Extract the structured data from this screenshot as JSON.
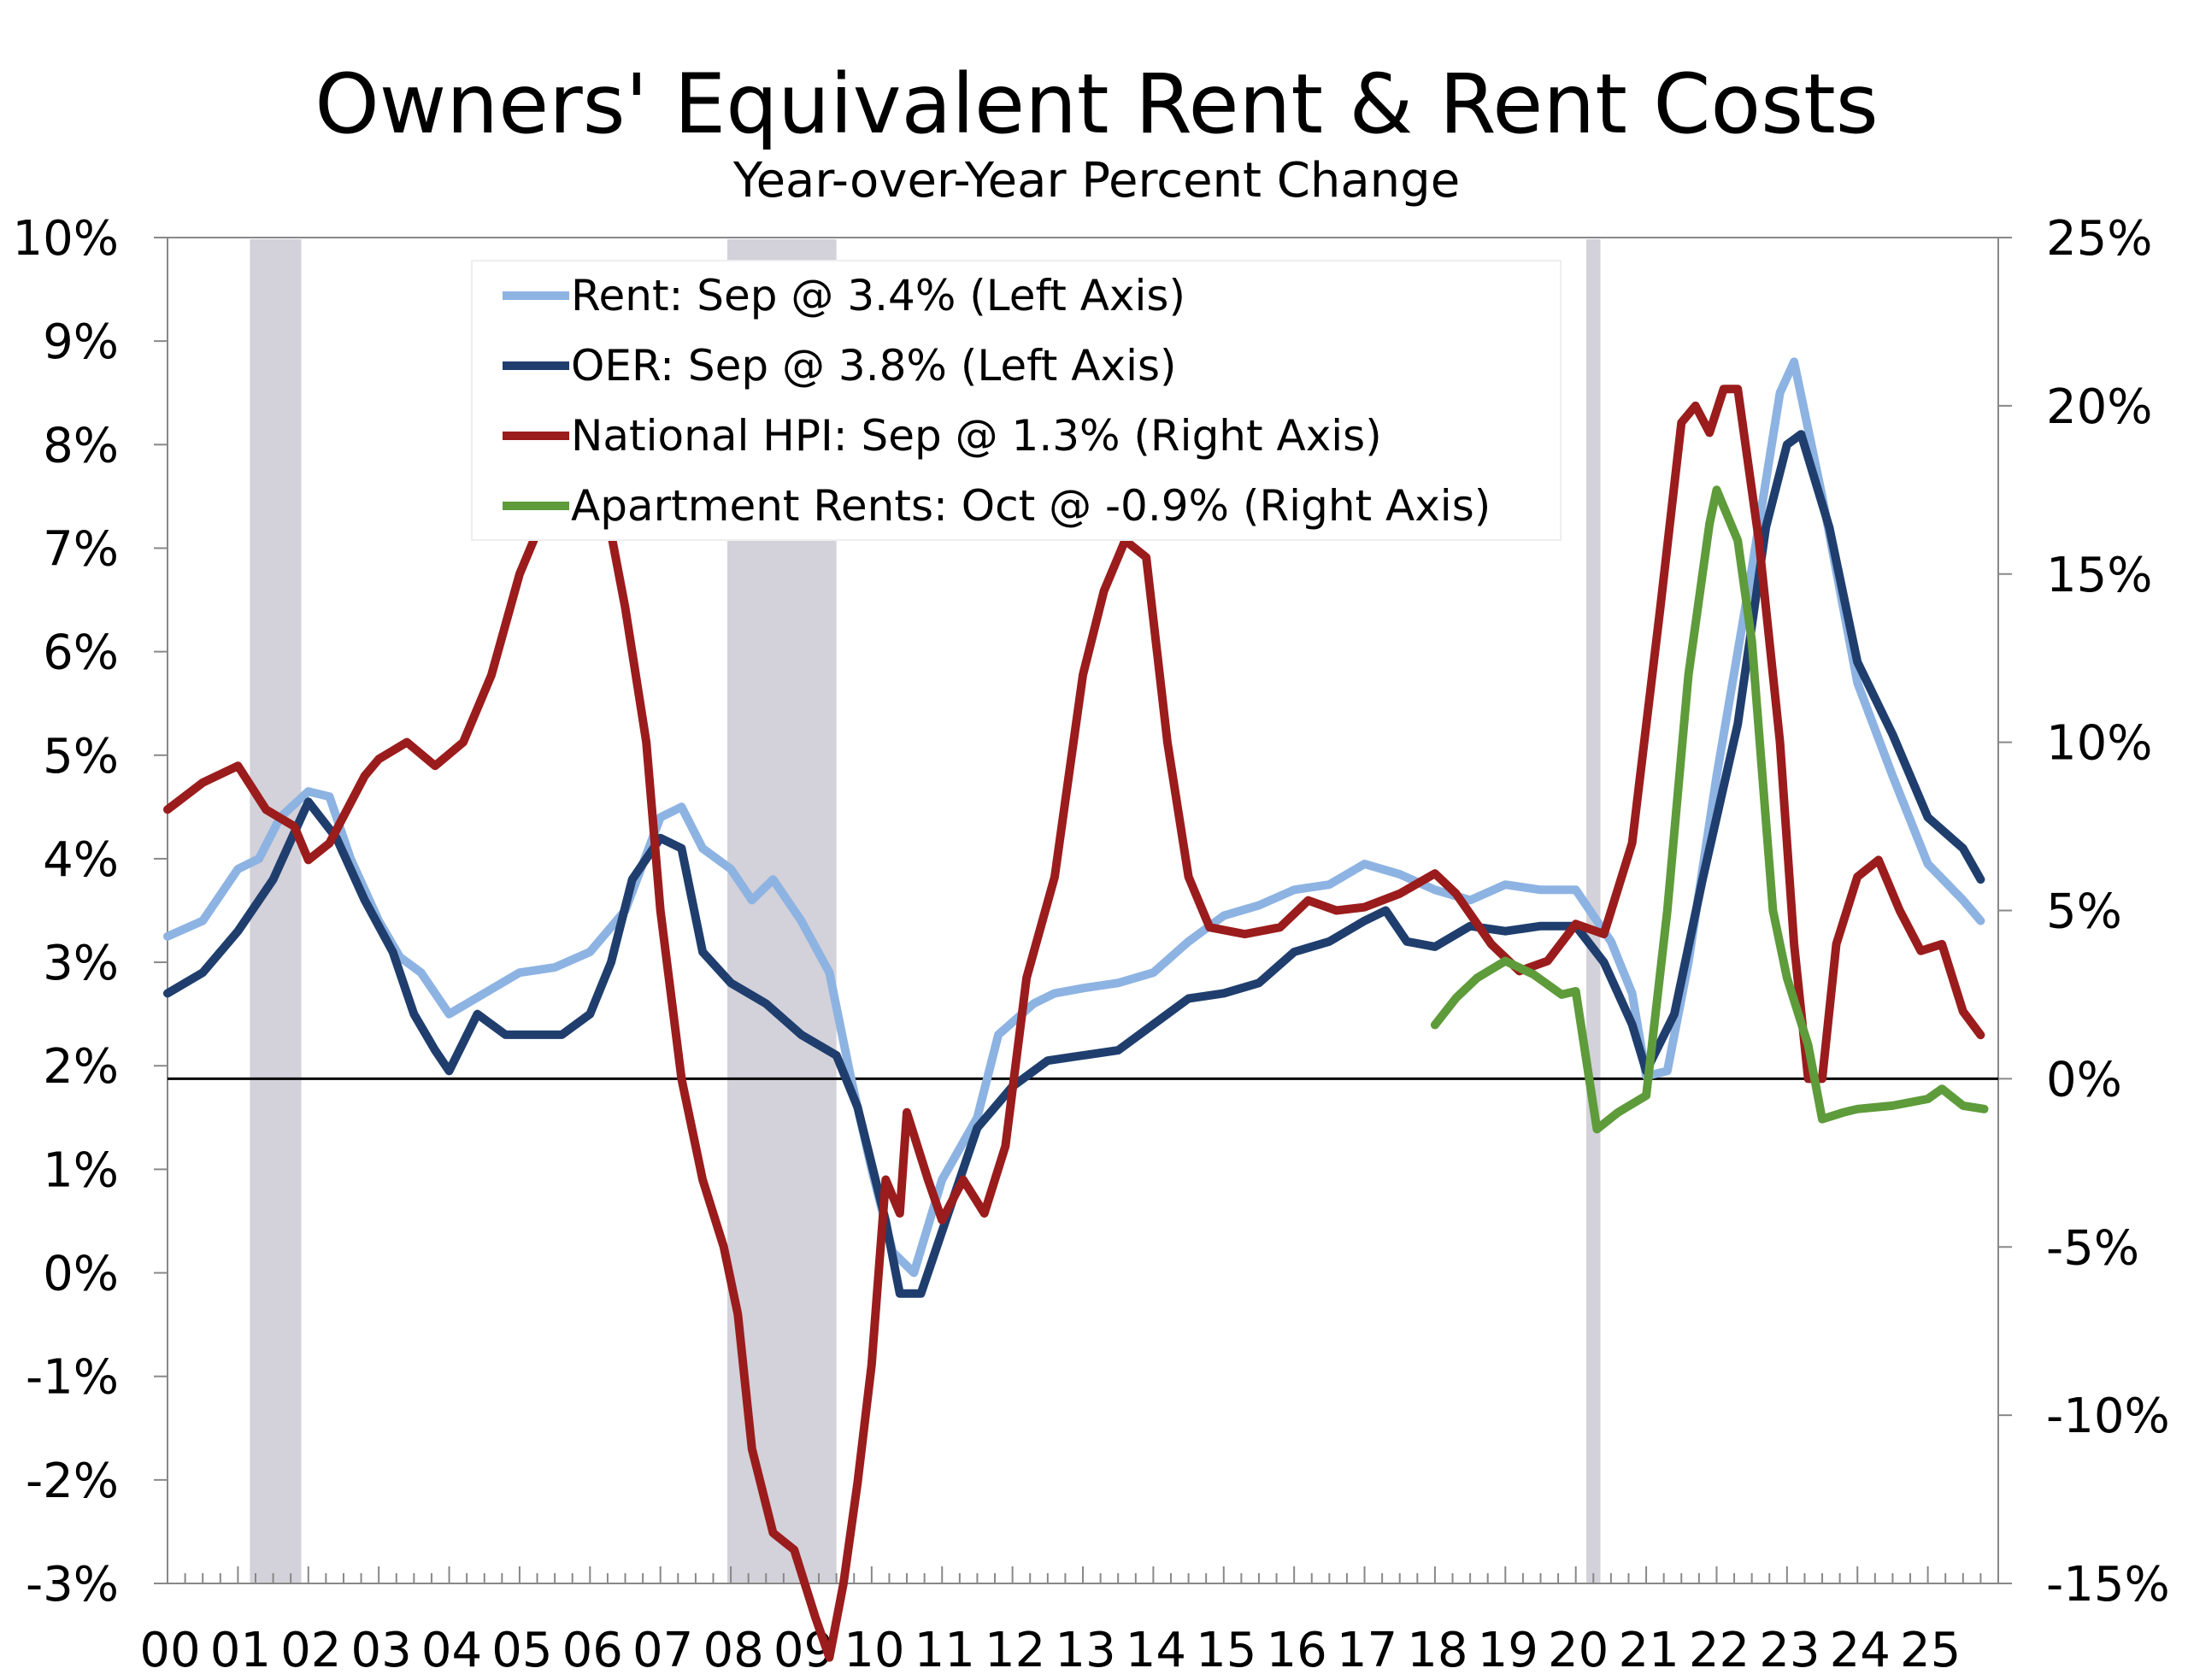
{
  "chart_data": {
    "type": "line",
    "title": "Owners' Equivalent Rent & Rent Costs",
    "subtitle": "Year-over-Year Percent Change",
    "x_range": [
      2000,
      2026
    ],
    "x_tick_labels": [
      "00",
      "01",
      "02",
      "03",
      "04",
      "05",
      "06",
      "07",
      "08",
      "09",
      "10",
      "11",
      "12",
      "13",
      "14",
      "15",
      "16",
      "17",
      "18",
      "19",
      "20",
      "21",
      "22",
      "23",
      "24",
      "25"
    ],
    "left_axis": {
      "range": [
        -3,
        10
      ],
      "tick_labels": [
        "10%",
        "9%",
        "8%",
        "7%",
        "6%",
        "5%",
        "4%",
        "3%",
        "2%",
        "1%",
        "0%",
        "-1%",
        "-2%",
        "-3%"
      ]
    },
    "right_axis": {
      "range": [
        -15,
        25
      ],
      "tick_labels": [
        "25%",
        "20%",
        "15%",
        "10%",
        "5%",
        "0%",
        "-5%",
        "-10%",
        "-15%"
      ]
    },
    "zero_line_right_axis": 0,
    "recessions": [
      [
        2001.17,
        2001.9
      ],
      [
        2007.95,
        2009.5
      ],
      [
        2020.15,
        2020.35
      ]
    ],
    "legend_position": "top-left",
    "series": [
      {
        "name": "Rent: Sep @ 3.4% (Left Axis)",
        "axis": "left",
        "color": "#8DB3E2",
        "x": [
          2000,
          2000.5,
          2001,
          2001.3,
          2001.6,
          2002,
          2002.3,
          2002.6,
          2003,
          2003.3,
          2003.6,
          2004,
          2004.5,
          2005,
          2005.5,
          2006,
          2006.5,
          2007,
          2007.3,
          2007.6,
          2008,
          2008.3,
          2008.6,
          2009,
          2009.4,
          2009.7,
          2010,
          2010.3,
          2010.6,
          2011,
          2011.5,
          2011.8,
          2012.3,
          2012.6,
          2013,
          2013.5,
          2014,
          2014.5,
          2015,
          2015.5,
          2016,
          2016.5,
          2017,
          2017.5,
          2018,
          2018.5,
          2019,
          2019.5,
          2020,
          2020.5,
          2020.8,
          2021,
          2021.3,
          2021.6,
          2022,
          2022.5,
          2022.9,
          2023.1,
          2023.5,
          2024,
          2024.5,
          2025,
          2025.5,
          2025.75
        ],
        "y": [
          3.25,
          3.4,
          3.9,
          4.0,
          4.4,
          4.65,
          4.6,
          4.0,
          3.4,
          3.05,
          2.9,
          2.5,
          2.7,
          2.9,
          2.95,
          3.1,
          3.5,
          4.4,
          4.5,
          4.1,
          3.9,
          3.6,
          3.8,
          3.4,
          2.9,
          1.9,
          1.0,
          0.2,
          0.0,
          0.9,
          1.5,
          2.3,
          2.6,
          2.7,
          2.75,
          2.8,
          2.9,
          3.2,
          3.45,
          3.55,
          3.7,
          3.75,
          3.95,
          3.85,
          3.7,
          3.6,
          3.75,
          3.7,
          3.7,
          3.2,
          2.7,
          1.9,
          1.95,
          3.0,
          4.8,
          6.8,
          8.5,
          8.8,
          7.5,
          5.7,
          4.8,
          3.95,
          3.6,
          3.4
        ]
      },
      {
        "name": "OER: Sep @ 3.8% (Left Axis)",
        "axis": "left",
        "color": "#1F3E6E",
        "x": [
          2000,
          2000.5,
          2001,
          2001.5,
          2001.9,
          2002,
          2002.4,
          2002.8,
          2003.2,
          2003.5,
          2003.8,
          2004,
          2004.4,
          2004.8,
          2005.2,
          2005.6,
          2006,
          2006.3,
          2006.6,
          2007,
          2007.3,
          2007.6,
          2008,
          2008.5,
          2009,
          2009.5,
          2009.8,
          2010.2,
          2010.4,
          2010.7,
          2011,
          2011.5,
          2012,
          2012.5,
          2013,
          2013.5,
          2014,
          2014.5,
          2015,
          2015.5,
          2016,
          2016.5,
          2017,
          2017.3,
          2017.6,
          2018,
          2018.5,
          2019,
          2019.5,
          2020,
          2020.4,
          2020.8,
          2021,
          2021.4,
          2021.8,
          2022.3,
          2022.7,
          2023,
          2023.2,
          2023.6,
          2024,
          2024.5,
          2025,
          2025.5,
          2025.75
        ],
        "y": [
          2.7,
          2.9,
          3.3,
          3.8,
          4.4,
          4.55,
          4.2,
          3.6,
          3.1,
          2.5,
          2.15,
          1.95,
          2.5,
          2.3,
          2.3,
          2.3,
          2.5,
          3.0,
          3.8,
          4.2,
          4.1,
          3.1,
          2.8,
          2.6,
          2.3,
          2.1,
          1.6,
          0.5,
          -0.2,
          -0.2,
          0.4,
          1.4,
          1.8,
          2.05,
          2.1,
          2.15,
          2.4,
          2.65,
          2.7,
          2.8,
          3.1,
          3.2,
          3.4,
          3.5,
          3.2,
          3.15,
          3.35,
          3.3,
          3.35,
          3.35,
          3.0,
          2.4,
          1.95,
          2.5,
          3.8,
          5.3,
          7.2,
          8.0,
          8.1,
          7.2,
          5.9,
          5.2,
          4.4,
          4.1,
          3.8
        ]
      },
      {
        "name": "National HPI: Sep @ 1.3% (Right Axis)",
        "axis": "right",
        "color": "#9B1C1C",
        "x": [
          2000,
          2000.5,
          2001,
          2001.4,
          2001.8,
          2002,
          2002.3,
          2002.8,
          2003,
          2003.4,
          2003.8,
          2004.2,
          2004.6,
          2005,
          2005.3,
          2005.6,
          2006,
          2006.2,
          2006.5,
          2006.8,
          2007,
          2007.3,
          2007.6,
          2007.9,
          2008.1,
          2008.3,
          2008.6,
          2008.9,
          2009.2,
          2009.4,
          2009.6,
          2009.8,
          2010,
          2010.2,
          2010.4,
          2010.5,
          2010.8,
          2011,
          2011.3,
          2011.6,
          2011.9,
          2012.2,
          2012.6,
          2013,
          2013.3,
          2013.6,
          2013.9,
          2014.2,
          2014.5,
          2014.8,
          2015.3,
          2015.8,
          2016.2,
          2016.6,
          2017,
          2017.5,
          2018,
          2018.3,
          2018.8,
          2019.2,
          2019.6,
          2020,
          2020.4,
          2020.8,
          2021.2,
          2021.5,
          2021.7,
          2021.9,
          2022.1,
          2022.3,
          2022.6,
          2022.9,
          2023.1,
          2023.3,
          2023.5,
          2023.7,
          2024,
          2024.3,
          2024.6,
          2024.9,
          2025.2,
          2025.5,
          2025.75
        ],
        "y": [
          8,
          8.8,
          9.3,
          8,
          7.5,
          6.5,
          7,
          9,
          9.5,
          10,
          9.3,
          10,
          12,
          15,
          16.5,
          17.5,
          17.8,
          17.3,
          14,
          10,
          5,
          0,
          -3,
          -5,
          -7,
          -11,
          -13.5,
          -14,
          -16,
          -17.2,
          -15,
          -12,
          -8.5,
          -3,
          -4,
          -1,
          -3,
          -4.2,
          -3,
          -4,
          -2,
          3,
          6,
          12,
          14.5,
          16,
          15.5,
          10,
          6,
          4.5,
          4.3,
          4.5,
          5.3,
          5,
          5.1,
          5.5,
          6.1,
          5.5,
          4,
          3.2,
          3.5,
          4.6,
          4.3,
          7,
          14,
          19.5,
          20,
          19.2,
          20.5,
          20.5,
          16,
          10,
          4,
          0,
          0,
          4,
          6,
          6.5,
          5,
          3.8,
          4,
          2,
          1.3
        ]
      },
      {
        "name": "Apartment Rents: Oct @ -0.9% (Right Axis)",
        "axis": "right",
        "color": "#5E9B3A",
        "x": [
          2018,
          2018.3,
          2018.6,
          2019,
          2019.4,
          2019.8,
          2020,
          2020.3,
          2020.6,
          2021,
          2021.3,
          2021.6,
          2021.9,
          2022,
          2022.3,
          2022.5,
          2022.8,
          2023,
          2023.3,
          2023.5,
          2023.8,
          2024,
          2024.5,
          2025,
          2025.2,
          2025.5,
          2025.8
        ],
        "y": [
          1.6,
          2.4,
          3,
          3.5,
          3.1,
          2.5,
          2.6,
          -1.5,
          -1,
          -0.5,
          5,
          12,
          16.5,
          17.5,
          16,
          13,
          5,
          3,
          1,
          -1.2,
          -1,
          -0.9,
          -0.8,
          -0.6,
          -0.3,
          -0.8,
          -0.9
        ]
      }
    ]
  }
}
